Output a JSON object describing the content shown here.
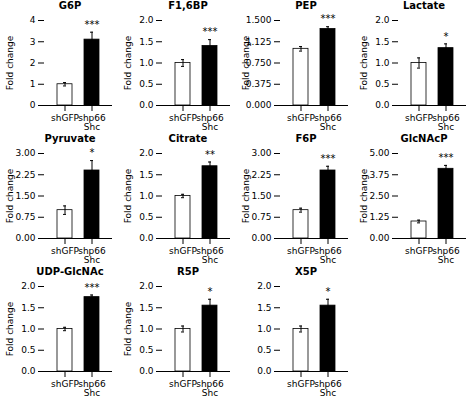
{
  "chart_data": [
    {
      "type": "bar",
      "title": "G6P",
      "categories": [
        "shGFP",
        "shp66\nShc"
      ],
      "values": [
        1.0,
        3.1
      ],
      "errors": [
        0.08,
        0.35
      ],
      "colors": [
        "white",
        "black"
      ],
      "ylabel": "Fold change",
      "ylim": [
        0,
        4
      ],
      "yticks": [
        0,
        1,
        2,
        3,
        4
      ],
      "annotations": [
        {
          "text": "***",
          "category": "shp66\nShc"
        }
      ]
    },
    {
      "type": "bar",
      "title": "F1,6BP",
      "categories": [
        "shGFP",
        "shp66\nShc"
      ],
      "values": [
        1.0,
        1.4
      ],
      "errors": [
        0.08,
        0.15
      ],
      "colors": [
        "white",
        "black"
      ],
      "ylabel": "Fold change",
      "ylim": [
        0.0,
        2.0
      ],
      "yticks": [
        {
          "value": 0,
          "label": "0.0"
        },
        0.5,
        {
          "value": 1,
          "label": "1.0"
        },
        1.5,
        {
          "value": 2,
          "label": "2.0"
        }
      ],
      "annotations": [
        {
          "text": "***",
          "category": "shp66\nShc"
        }
      ]
    },
    {
      "type": "bar",
      "title": "PEP",
      "categories": [
        "shGFP",
        "shp66\nShc"
      ],
      "values": [
        1.0,
        1.35
      ],
      "errors": [
        0.04,
        0.04
      ],
      "colors": [
        "white",
        "black"
      ],
      "ylabel": "Fold change",
      "ylim": [
        0.0,
        1.5
      ],
      "yticks": [
        {
          "value": 0,
          "label": "0.000"
        },
        0.375,
        {
          "value": 0.75,
          "label": "0.750"
        },
        1.125,
        {
          "value": 1.5,
          "label": "1.500"
        }
      ],
      "annotations": [
        {
          "text": "***",
          "category": "shp66\nShc"
        }
      ]
    },
    {
      "type": "bar",
      "title": "Lactate",
      "categories": [
        "shGFP",
        "shp66\nShc"
      ],
      "values": [
        1.0,
        1.35
      ],
      "errors": [
        0.12,
        0.1
      ],
      "colors": [
        "white",
        "black"
      ],
      "ylabel": "Fold change",
      "ylim": [
        0.0,
        2.0
      ],
      "yticks": [
        {
          "value": 0,
          "label": "0.0"
        },
        0.5,
        {
          "value": 1,
          "label": "1.0"
        },
        1.5,
        {
          "value": 2,
          "label": "2.0"
        }
      ],
      "annotations": [
        {
          "text": "*",
          "category": "shp66\nShc"
        }
      ]
    },
    {
      "type": "bar",
      "title": "Pyruvate",
      "categories": [
        "shGFP",
        "shp66\nShc"
      ],
      "values": [
        1.0,
        2.4
      ],
      "errors": [
        0.15,
        0.35
      ],
      "colors": [
        "white",
        "black"
      ],
      "ylabel": "Fold change",
      "ylim": [
        0,
        3
      ],
      "yticks": [
        {
          "value": 0,
          "label": "0.00"
        },
        0.75,
        {
          "value": 1.5,
          "label": "1.50"
        },
        2.25,
        {
          "value": 3,
          "label": "3.00"
        }
      ],
      "annotations": [
        {
          "text": "*",
          "category": "shp66\nShc"
        }
      ]
    },
    {
      "type": "bar",
      "title": "Citrate",
      "categories": [
        "shGFP",
        "shp66\nShc"
      ],
      "values": [
        1.0,
        1.7
      ],
      "errors": [
        0.04,
        0.1
      ],
      "colors": [
        "white",
        "black"
      ],
      "ylabel": "Fold change",
      "ylim": [
        0.0,
        2.0
      ],
      "yticks": [
        {
          "value": 0,
          "label": "0.0"
        },
        0.5,
        {
          "value": 1,
          "label": "1.0"
        },
        1.5,
        {
          "value": 2,
          "label": "2.0"
        }
      ],
      "annotations": [
        {
          "text": "**",
          "category": "shp66\nShc"
        }
      ]
    },
    {
      "type": "bar",
      "title": "F6P",
      "categories": [
        "shGFP",
        "shp66\nShc"
      ],
      "values": [
        1.0,
        2.4
      ],
      "errors": [
        0.07,
        0.15
      ],
      "colors": [
        "white",
        "black"
      ],
      "ylabel": "Fold change",
      "ylim": [
        0,
        3
      ],
      "yticks": [
        {
          "value": 0,
          "label": "0.00"
        },
        0.75,
        {
          "value": 1.5,
          "label": "1.50"
        },
        2.25,
        {
          "value": 3,
          "label": "3.00"
        }
      ],
      "annotations": [
        {
          "text": "***",
          "category": "shp66\nShc"
        }
      ]
    },
    {
      "type": "bar",
      "title": "GlcNAcP",
      "categories": [
        "shGFP",
        "shp66\nShc"
      ],
      "values": [
        1.0,
        4.1
      ],
      "errors": [
        0.08,
        0.2
      ],
      "colors": [
        "white",
        "black"
      ],
      "ylabel": "Fold change",
      "ylim": [
        0,
        5
      ],
      "yticks": [
        {
          "value": 0,
          "label": "0.00"
        },
        1.25,
        {
          "value": 2.5,
          "label": "2.50"
        },
        3.75,
        {
          "value": 5,
          "label": "5.00"
        }
      ],
      "annotations": [
        {
          "text": "***",
          "category": "shp66\nShc"
        }
      ]
    },
    {
      "type": "bar",
      "title": "UDP-GlcNAc",
      "categories": [
        "shGFP",
        "shp66\nShc"
      ],
      "values": [
        1.0,
        1.75
      ],
      "errors": [
        0.04,
        0.05
      ],
      "colors": [
        "white",
        "black"
      ],
      "ylabel": "Fold change",
      "ylim": [
        0.0,
        2.0
      ],
      "yticks": [
        {
          "value": 0,
          "label": "0.0"
        },
        0.5,
        {
          "value": 1,
          "label": "1.0"
        },
        1.5,
        {
          "value": 2,
          "label": "2.0"
        }
      ],
      "annotations": [
        {
          "text": "***",
          "category": "shp66\nShc"
        }
      ]
    },
    {
      "type": "bar",
      "title": "R5P",
      "categories": [
        "shGFP",
        "shp66\nShc"
      ],
      "values": [
        1.0,
        1.55
      ],
      "errors": [
        0.07,
        0.15
      ],
      "colors": [
        "white",
        "black"
      ],
      "ylabel": "Fold change",
      "ylim": [
        0.0,
        2.0
      ],
      "yticks": [
        {
          "value": 0,
          "label": "0.0"
        },
        0.5,
        {
          "value": 1,
          "label": "1.0"
        },
        1.5,
        {
          "value": 2,
          "label": "2.0"
        }
      ],
      "annotations": [
        {
          "text": "*",
          "category": "shp66\nShc"
        }
      ]
    },
    {
      "type": "bar",
      "title": "X5P",
      "categories": [
        "shGFP",
        "shp66\nShc"
      ],
      "values": [
        1.0,
        1.55
      ],
      "errors": [
        0.07,
        0.15
      ],
      "colors": [
        "white",
        "black"
      ],
      "ylim": [
        0.0,
        2.0
      ],
      "yticks": [
        {
          "value": 0,
          "label": "0.0"
        },
        0.5,
        {
          "value": 1,
          "label": "1.0"
        },
        1.5,
        {
          "value": 2,
          "label": "2.0"
        }
      ],
      "annotations": [
        {
          "text": "*",
          "category": "shp66\nShc"
        }
      ]
    }
  ]
}
